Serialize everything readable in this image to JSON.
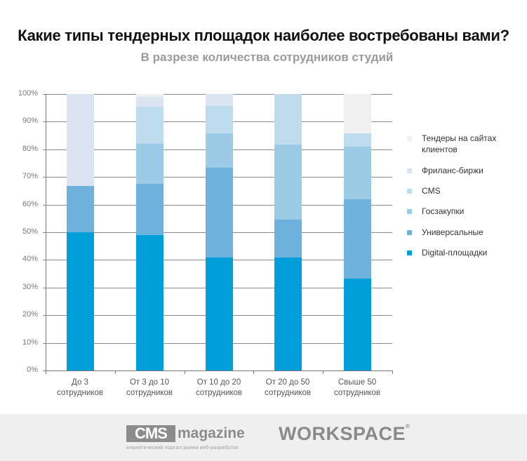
{
  "header": {
    "title": "Какие типы тендерных площадок наиболее востребованы вами?",
    "subtitle": "В разрезе количества сотрудников студий"
  },
  "chart_data": {
    "type": "bar",
    "stacked": true,
    "normalized": true,
    "title": "Какие типы тендерных площадок наиболее востребованы вами?",
    "subtitle": "В разрезе количества сотрудников студий",
    "xlabel": "",
    "ylabel": "",
    "ylim": [
      0,
      100
    ],
    "yticks": [
      "0%",
      "10%",
      "20%",
      "30%",
      "40%",
      "50%",
      "60%",
      "70%",
      "80%",
      "90%",
      "100%"
    ],
    "grid": true,
    "legend_position": "right",
    "categories": [
      [
        "До 3",
        "сотрудников"
      ],
      [
        "От 3 до 10",
        "сотрудников"
      ],
      [
        "От 10 до 20",
        "сотрудников"
      ],
      [
        "От 20 до 50",
        "сотрудников"
      ],
      [
        "Свыше 50",
        "сотрудников"
      ]
    ],
    "series": [
      {
        "name": "Digital-площадки",
        "color": "#009fda",
        "values": [
          50,
          49,
          40.9,
          40.9,
          33.3
        ]
      },
      {
        "name": "Универсальные",
        "color": "#6eb1dc",
        "values": [
          16.7,
          18.5,
          32.5,
          13.6,
          28.6
        ]
      },
      {
        "name": "Госзакупки",
        "color": "#9ccbe6",
        "values": [
          0,
          14.5,
          12.5,
          27.3,
          19.0
        ]
      },
      {
        "name": "CMS",
        "color": "#bfdcef",
        "values": [
          0,
          13.5,
          9.8,
          18.2,
          4.8
        ]
      },
      {
        "name": "Фриланс-биржи",
        "color": "#dbe5f1",
        "values": [
          33.3,
          3.5,
          4.3,
          0,
          0
        ]
      },
      {
        "name": "Тендеры на сайтах клиентов",
        "color": "#f0f0f0",
        "values": [
          0,
          1.0,
          0,
          0,
          14.3
        ]
      }
    ]
  },
  "legend": [
    {
      "label": "Тендеры на сайтах\nклиентов",
      "color": "#f0f0f0"
    },
    {
      "label": "Фриланс-биржи",
      "color": "#dbe5f1"
    },
    {
      "label": "CMS",
      "color": "#bfdcef"
    },
    {
      "label": "Госзакупки",
      "color": "#9ccbe6"
    },
    {
      "label": "Универсальные",
      "color": "#6eb1dc"
    },
    {
      "label": "Digital-площадки",
      "color": "#009fda"
    }
  ],
  "footer": {
    "cms_box": "CMS",
    "cms_magazine": "magazine",
    "cms_tagline": "аналитический портал рынка веб-разработок",
    "workspace": "WORKSPACE",
    "workspace_reg": "®"
  }
}
